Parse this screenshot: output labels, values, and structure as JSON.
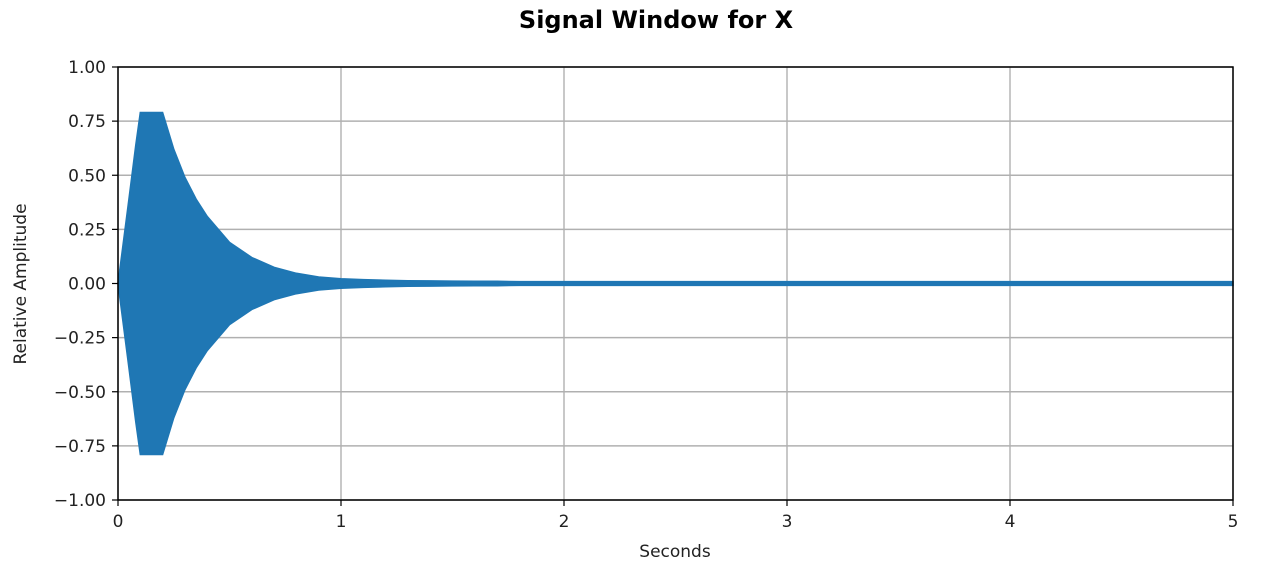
{
  "chart_data": {
    "type": "area",
    "title": "Signal Window for X",
    "xlabel": "Seconds",
    "ylabel": "Relative Amplitude",
    "xlim": [
      0,
      5
    ],
    "ylim": [
      -1.0,
      1.0
    ],
    "grid": true,
    "x_ticks": [
      0,
      1,
      2,
      3,
      4,
      5
    ],
    "x_tick_labels": [
      "0",
      "1",
      "2",
      "3",
      "4",
      "5"
    ],
    "y_ticks": [
      1.0,
      0.75,
      0.5,
      0.25,
      0.0,
      -0.25,
      -0.5,
      -0.75,
      -1.0
    ],
    "y_tick_labels": [
      "1.00",
      "0.75",
      "0.50",
      "0.25",
      "0.00",
      "−0.25",
      "−0.50",
      "−0.75",
      "−1.00"
    ],
    "series": [
      {
        "color": "#1f77b4",
        "x": [
          0.0,
          0.02,
          0.05,
          0.08,
          0.1,
          0.15,
          0.2,
          0.25,
          0.3,
          0.35,
          0.4,
          0.5,
          0.6,
          0.7,
          0.8,
          0.9,
          1.0,
          1.1,
          1.2,
          1.3,
          1.4,
          1.5,
          1.6,
          1.7,
          1.8,
          1.9,
          2.0,
          2.5,
          3.0,
          3.5,
          4.0,
          4.5,
          5.0
        ],
        "envelope": [
          0.0,
          0.16,
          0.4,
          0.64,
          0.79,
          0.79,
          0.79,
          0.62,
          0.49,
          0.39,
          0.31,
          0.19,
          0.12,
          0.075,
          0.047,
          0.03,
          0.022,
          0.018,
          0.015,
          0.013,
          0.012,
          0.011,
          0.01,
          0.01,
          0.009,
          0.009,
          0.009,
          0.009,
          0.009,
          0.009,
          0.009,
          0.009,
          0.009
        ]
      }
    ]
  }
}
